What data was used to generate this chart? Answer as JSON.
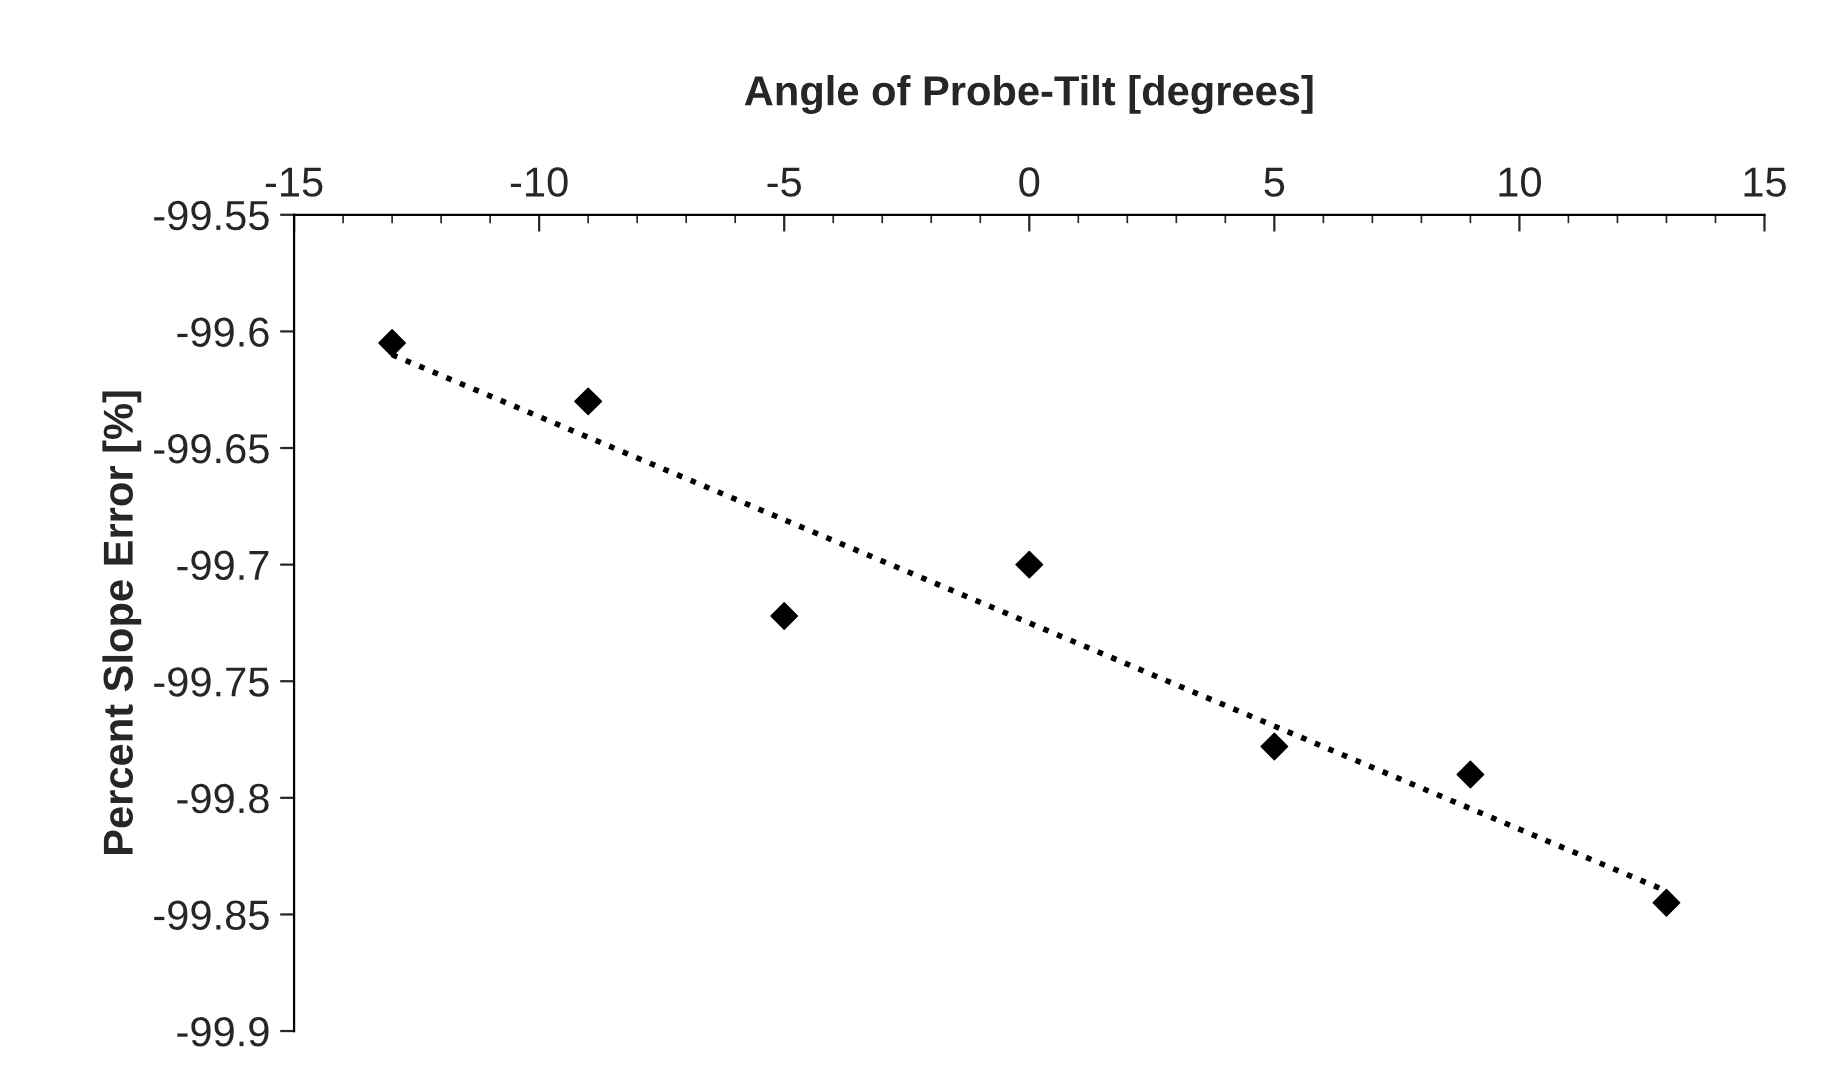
{
  "chart_data": {
    "type": "scatter",
    "xlabel": "Angle of Probe-Tilt [degrees]",
    "ylabel": "Percent Slope Error [%]",
    "series": [
      {
        "color": "#000000",
        "marker": "diamond",
        "x": [
          -13,
          -9,
          -5,
          0,
          5,
          9,
          13
        ],
        "values": [
          -99.605,
          -99.63,
          -99.722,
          -99.7,
          -99.778,
          -99.79,
          -99.845
        ]
      },
      {
        "type": "line",
        "color": "#000000",
        "line_style": "dotted",
        "marker": "none",
        "x": [
          -13,
          13
        ],
        "values": [
          -99.61,
          -99.84
        ]
      }
    ],
    "xlim": [
      -15,
      15
    ],
    "xticks": [
      -15,
      -10,
      -5,
      0,
      5,
      10,
      15
    ],
    "ylim": [
      -99.9,
      -99.55
    ],
    "yticks": [
      -99.9,
      -99.85,
      -99.8,
      -99.75,
      -99.7,
      -99.65,
      -99.6,
      -99.55
    ],
    "grid": false,
    "legend": false
  }
}
